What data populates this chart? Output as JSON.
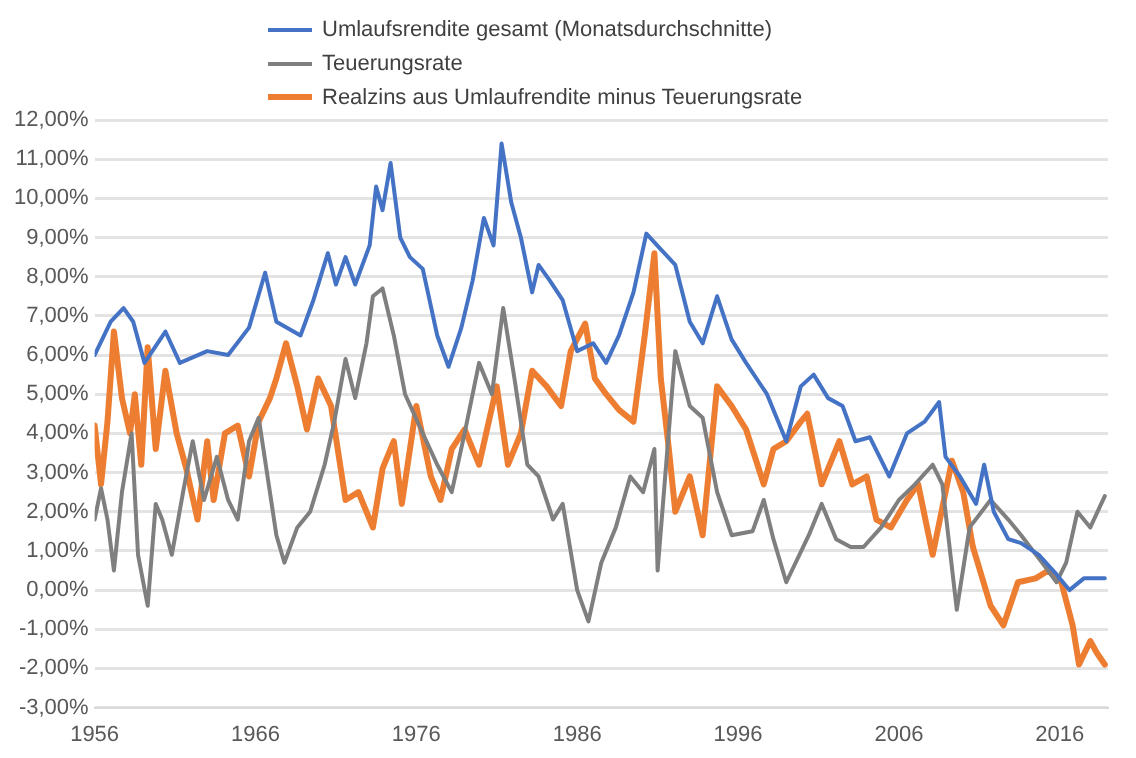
{
  "chart_data": {
    "type": "line",
    "legend": "top",
    "grid": "y",
    "marker": "none",
    "line_style": "solid",
    "xlim": [
      1956,
      2019
    ],
    "xticks": [
      1956,
      1966,
      1976,
      1986,
      1996,
      2006,
      2016
    ],
    "ylim": [
      -3,
      12
    ],
    "yticks": [
      {
        "value": 12,
        "label": "12,00%"
      },
      {
        "value": 11,
        "label": "11,00%"
      },
      {
        "value": 10,
        "label": "10,00%"
      },
      {
        "value": 9,
        "label": "9,00%"
      },
      {
        "value": 8,
        "label": "8,00%"
      },
      {
        "value": 7,
        "label": "7,00%"
      },
      {
        "value": 6,
        "label": "6,00%"
      },
      {
        "value": 5,
        "label": "5,00%"
      },
      {
        "value": 4,
        "label": "4,00%"
      },
      {
        "value": 3,
        "label": "3,00%"
      },
      {
        "value": 2,
        "label": "2,00%"
      },
      {
        "value": 1,
        "label": "1,00%"
      },
      {
        "value": 0,
        "label": "0,00%"
      },
      {
        "value": -1,
        "label": "-1,00%"
      },
      {
        "value": -2,
        "label": "-2,00%"
      },
      {
        "value": -3,
        "label": "-3,00%"
      }
    ],
    "series": [
      {
        "name": "Umlaufsrendite gesamt (Monatsdurchschnitte)",
        "color": "#4472c4",
        "x": [
          1956,
          1957,
          1957.8,
          1958.4,
          1959.1,
          1960.4,
          1961.3,
          1963,
          1964.3,
          1965.6,
          1966.6,
          1967.3,
          1968.8,
          1969.6,
          1970.5,
          1971,
          1971.6,
          1972.2,
          1973.1,
          1973.5,
          1973.9,
          1974.4,
          1975,
          1975.6,
          1976.4,
          1977.3,
          1978,
          1978.8,
          1979.5,
          1980.2,
          1980.8,
          1981.3,
          1981.9,
          1982.5,
          1983.2,
          1983.6,
          1984.3,
          1985.1,
          1986,
          1987,
          1987.8,
          1988.6,
          1989.5,
          1990.3,
          1991.2,
          1992.1,
          1993,
          1993.8,
          1994.7,
          1995.6,
          1996.5,
          1997.8,
          1999,
          1999.9,
          2000.7,
          2001.6,
          2002.5,
          2003.3,
          2004.2,
          2005.4,
          2006.5,
          2007.6,
          2008.5,
          2008.9,
          2009.8,
          2010.8,
          2011.3,
          2011.9,
          2012.8,
          2013.6,
          2014.7,
          2015.8,
          2016.6,
          2017.5,
          2018.8
        ],
        "values": [
          6.0,
          6.85,
          7.2,
          6.85,
          5.8,
          6.6,
          5.8,
          6.1,
          6.0,
          6.7,
          8.1,
          6.85,
          6.5,
          7.4,
          8.6,
          7.8,
          8.5,
          7.8,
          8.8,
          10.3,
          9.7,
          10.9,
          9.0,
          8.5,
          8.2,
          6.5,
          5.7,
          6.7,
          7.9,
          9.5,
          8.8,
          11.4,
          9.9,
          9.0,
          7.6,
          8.3,
          7.9,
          7.4,
          6.1,
          6.3,
          5.8,
          6.5,
          7.6,
          9.1,
          8.7,
          8.3,
          6.85,
          6.3,
          7.5,
          6.4,
          5.8,
          5.0,
          3.8,
          5.2,
          5.5,
          4.9,
          4.7,
          3.8,
          3.9,
          2.9,
          4.0,
          4.3,
          4.8,
          3.4,
          2.9,
          2.2,
          3.2,
          2.0,
          1.3,
          1.2,
          0.9,
          0.4,
          0.0,
          0.3,
          0.3
        ]
      },
      {
        "name": "Teuerungsrate",
        "color": "#7f7f7f",
        "x": [
          1956,
          1956.4,
          1956.8,
          1957.2,
          1957.7,
          1958.3,
          1958.7,
          1959.3,
          1959.8,
          1960.2,
          1960.8,
          1961.5,
          1962.1,
          1962.8,
          1963.6,
          1964.3,
          1964.9,
          1965.6,
          1966.2,
          1967.3,
          1967.8,
          1968.6,
          1969.4,
          1970.3,
          1970.9,
          1971.6,
          1972.2,
          1972.9,
          1973.3,
          1973.9,
          1974.6,
          1975.3,
          1976.4,
          1977.3,
          1978.2,
          1979,
          1979.9,
          1980.7,
          1981.4,
          1982.1,
          1982.9,
          1983.6,
          1984.5,
          1985.1,
          1986,
          1986.7,
          1987.5,
          1988.4,
          1989.3,
          1990.1,
          1990.8,
          1991,
          1992.1,
          1993,
          1993.8,
          1994.7,
          1995.6,
          1996.9,
          1997.6,
          1998.2,
          1999,
          2000.4,
          2001.2,
          2002.1,
          2003,
          2003.8,
          2004.9,
          2006,
          2007,
          2008.1,
          2008.7,
          2009.6,
          2010.4,
          2011.7,
          2012.8,
          2013.6,
          2014.9,
          2015.8,
          2016.4,
          2017.1,
          2017.9,
          2018.8
        ],
        "values": [
          1.8,
          2.6,
          1.8,
          0.5,
          2.5,
          4.0,
          0.9,
          -0.4,
          2.2,
          1.8,
          0.9,
          2.5,
          3.8,
          2.3,
          3.4,
          2.3,
          1.8,
          3.8,
          4.4,
          1.4,
          0.7,
          1.6,
          2.0,
          3.2,
          4.3,
          5.9,
          4.9,
          6.3,
          7.5,
          7.7,
          6.5,
          5.0,
          4.0,
          3.2,
          2.5,
          4.0,
          5.8,
          5.0,
          7.2,
          5.4,
          3.2,
          2.9,
          1.8,
          2.2,
          0.0,
          -0.8,
          0.7,
          1.6,
          2.9,
          2.5,
          3.6,
          0.5,
          6.1,
          4.7,
          4.4,
          2.5,
          1.4,
          1.5,
          2.3,
          1.3,
          0.2,
          1.4,
          2.2,
          1.3,
          1.1,
          1.1,
          1.6,
          2.3,
          2.7,
          3.2,
          2.7,
          -0.5,
          1.6,
          2.3,
          1.8,
          1.4,
          0.7,
          0.2,
          0.7,
          2.0,
          1.6,
          2.4
        ]
      },
      {
        "name": "Realzins aus Umlaufrendite minus Teuerungsrate",
        "color": "#ed7d31",
        "x": [
          1956,
          1956.4,
          1956.8,
          1957.2,
          1957.7,
          1958.2,
          1958.5,
          1958.9,
          1959.3,
          1959.8,
          1960.4,
          1961.1,
          1961.7,
          1962.4,
          1963,
          1963.4,
          1964.1,
          1964.9,
          1965.6,
          1966.2,
          1966.9,
          1967.3,
          1967.9,
          1968.6,
          1969.2,
          1969.9,
          1970.7,
          1971.6,
          1972.4,
          1973.3,
          1973.9,
          1974.6,
          1975.1,
          1976,
          1976.9,
          1977.5,
          1978.2,
          1979,
          1979.9,
          1981,
          1981.7,
          1982.5,
          1983.2,
          1984.1,
          1985,
          1985.6,
          1986.5,
          1987.1,
          1987.8,
          1988.6,
          1989.5,
          1990.2,
          1990.8,
          1991.2,
          1991.7,
          1992.1,
          1993,
          1993.8,
          1994.7,
          1995.6,
          1996.5,
          1997.6,
          1998.2,
          1999,
          1999.9,
          2000.3,
          2001.2,
          2002.3,
          2003.1,
          2004,
          2004.6,
          2005.5,
          2006.5,
          2007.2,
          2008.1,
          2008.9,
          2009.3,
          2010,
          2010.6,
          2011.7,
          2012.5,
          2013.4,
          2014.5,
          2015.3,
          2016.1,
          2016.8,
          2017.2,
          2017.9,
          2018.3,
          2018.8
        ],
        "values": [
          4.2,
          2.7,
          4.3,
          6.6,
          4.9,
          4.0,
          5.0,
          3.2,
          6.2,
          3.6,
          5.6,
          4.0,
          3.1,
          1.8,
          3.8,
          2.3,
          4.0,
          4.2,
          2.9,
          4.3,
          4.9,
          5.4,
          6.3,
          5.2,
          4.1,
          5.4,
          4.7,
          2.3,
          2.5,
          1.6,
          3.1,
          3.8,
          2.2,
          4.7,
          2.9,
          2.3,
          3.6,
          4.1,
          3.2,
          5.2,
          3.2,
          4.0,
          5.6,
          5.2,
          4.7,
          6.1,
          6.8,
          5.4,
          5.0,
          4.6,
          4.3,
          6.5,
          8.6,
          5.4,
          3.6,
          2.0,
          2.9,
          1.4,
          5.2,
          4.7,
          4.1,
          2.7,
          3.6,
          3.8,
          4.3,
          4.5,
          2.7,
          3.8,
          2.7,
          2.9,
          1.8,
          1.6,
          2.3,
          2.7,
          0.9,
          2.5,
          3.3,
          2.5,
          1.1,
          -0.4,
          -0.9,
          0.2,
          0.3,
          0.5,
          0.2,
          -0.9,
          -1.9,
          -1.3,
          -1.6,
          -1.9
        ]
      }
    ]
  }
}
